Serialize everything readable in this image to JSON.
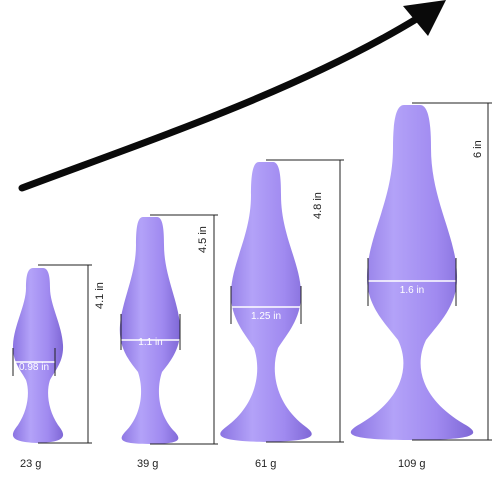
{
  "colors": {
    "product": "#a08af0",
    "product_shadow": "#7f68d6",
    "product_highlight": "#c5b7fb",
    "arrow": "#0a0a0a",
    "measure_lines": "#222222"
  },
  "arrow_icon": "trend-up-arrow-icon",
  "products": [
    {
      "weight": "23 g",
      "height": "4.1 in",
      "diameter": "0.98 in"
    },
    {
      "weight": "39 g",
      "height": "4.5 in",
      "diameter": "1.1 in"
    },
    {
      "weight": "61 g",
      "height": "4.8 in",
      "diameter": "1.25 in"
    },
    {
      "weight": "109 g",
      "height": "6 in",
      "diameter": "1.6 in"
    }
  ]
}
